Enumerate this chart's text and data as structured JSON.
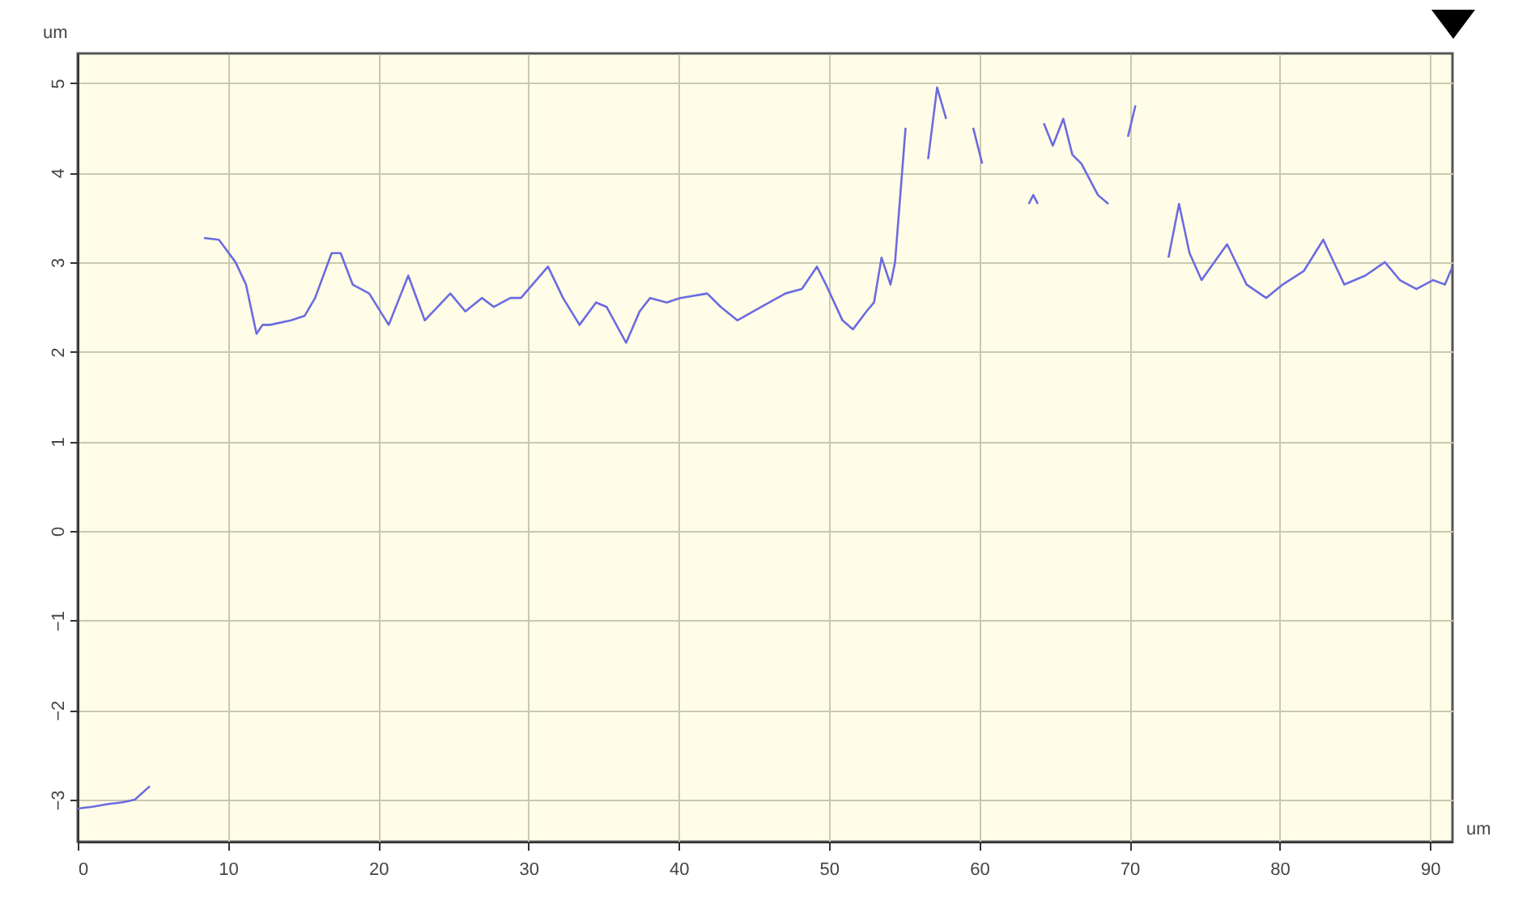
{
  "chart_data": {
    "type": "line",
    "xlabel": "um",
    "ylabel": "um",
    "color": "#6b6be0",
    "grid": true,
    "line_style": "solid",
    "marker": "none",
    "xlim": [
      0,
      91.5
    ],
    "ylim": [
      -3.47,
      5.33
    ],
    "xticks": [
      0,
      10,
      20,
      30,
      40,
      50,
      60,
      70,
      80,
      90
    ],
    "yticks": [
      -3,
      -2,
      -1,
      0,
      1,
      2,
      3,
      4,
      5
    ],
    "x": [
      0,
      1,
      2,
      3,
      3.8,
      4.8,
      6.5,
      8.4,
      9.4,
      10.5,
      11.2,
      11.9,
      12.3,
      12.8,
      14.2,
      15.1,
      15.8,
      16.9,
      17.5,
      18.3,
      19.4,
      20.7,
      22,
      23.1,
      24.8,
      25.8,
      26.9,
      27.7,
      28.8,
      29.5,
      31.3,
      32.3,
      33.4,
      34.5,
      35.2,
      36.5,
      37.4,
      38.1,
      39.2,
      40.1,
      41.9,
      42.8,
      43.9,
      45.5,
      47.1,
      48.2,
      49.2,
      49.8,
      50.9,
      51.6,
      52.5,
      53,
      53.5,
      54.1,
      54.4,
      55.1,
      55.8,
      56.6,
      57.2,
      57.8,
      58.7,
      59.6,
      60.2,
      61.7,
      63.3,
      63.6,
      63.9,
      64.1,
      64.3,
      64.9,
      65.6,
      66.2,
      66.8,
      67.9,
      68.6,
      69.3,
      69.9,
      70.4,
      71.5,
      72.6,
      73.3,
      74,
      74.8,
      76.5,
      77.8,
      79.1,
      80.2,
      81.6,
      82.9,
      84.3,
      85.7,
      87,
      88,
      89.1,
      90.2,
      91,
      91.5
    ],
    "values": [
      -3.1,
      -3.08,
      -3.05,
      -3.03,
      -3.0,
      -2.85,
      null,
      3.27,
      3.25,
      3.0,
      2.75,
      2.2,
      2.3,
      2.3,
      2.35,
      2.4,
      2.6,
      3.1,
      3.1,
      2.75,
      2.65,
      2.3,
      2.85,
      2.35,
      2.65,
      2.45,
      2.6,
      2.5,
      2.6,
      2.6,
      2.95,
      2.6,
      2.3,
      2.55,
      2.5,
      2.1,
      2.45,
      2.6,
      2.55,
      2.6,
      2.65,
      2.5,
      2.35,
      2.5,
      2.65,
      2.7,
      2.95,
      2.75,
      2.35,
      2.25,
      2.45,
      2.55,
      3.05,
      2.75,
      3.0,
      4.5,
      null,
      4.15,
      4.95,
      4.6,
      null,
      4.5,
      4.1,
      null,
      3.65,
      3.75,
      3.65,
      null,
      4.55,
      4.3,
      4.6,
      4.2,
      4.1,
      3.75,
      3.65,
      null,
      4.4,
      4.75,
      null,
      3.05,
      3.65,
      3.1,
      2.8,
      3.2,
      2.75,
      2.6,
      2.75,
      2.9,
      3.25,
      2.75,
      2.85,
      3.0,
      2.8,
      2.7,
      2.8,
      2.75,
      2.95
    ]
  }
}
